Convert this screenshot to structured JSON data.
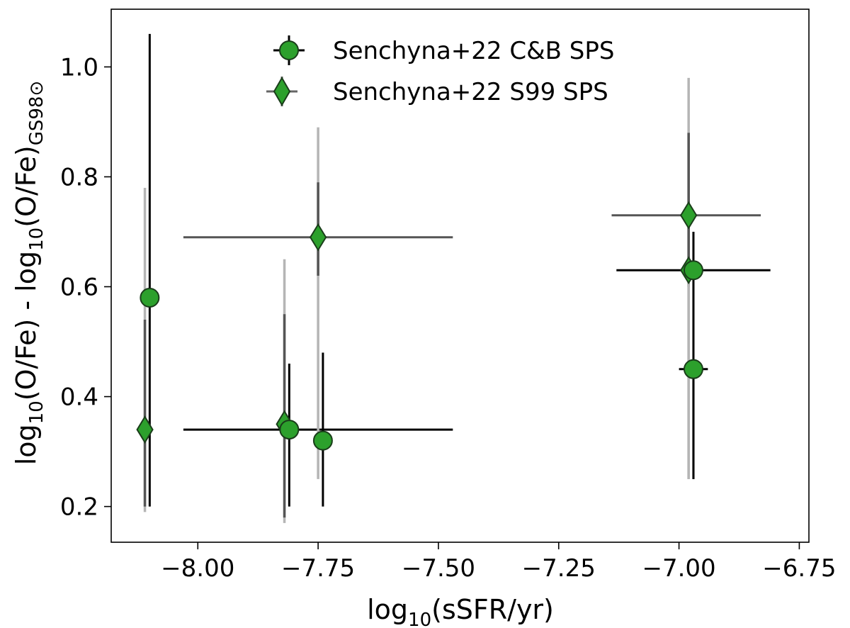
{
  "chart_data": {
    "type": "scatter",
    "xlabel": {
      "pre": "log",
      "sub": "10",
      "post": "(sSFR/yr)"
    },
    "ylabel": {
      "a_pre": "log",
      "a_sub": "10",
      "a_post": "(O/Fe) - ",
      "b_pre": "log",
      "b_sub": "10",
      "b_post": "(O/Fe)",
      "b_subscript": "GS98⊙"
    },
    "xlim": [
      -8.18,
      -6.73
    ],
    "ylim": [
      0.135,
      1.105
    ],
    "xticks": [
      -8.0,
      -7.75,
      -7.5,
      -7.25,
      -7.0,
      -6.75
    ],
    "xtick_labels": [
      "−8.00",
      "−7.75",
      "−7.50",
      "−7.25",
      "−7.00",
      "−6.75"
    ],
    "yticks": [
      0.2,
      0.4,
      0.6,
      0.8,
      1.0
    ],
    "ytick_labels": [
      "0.2",
      "0.4",
      "0.6",
      "0.8",
      "1.0"
    ],
    "grid": false,
    "legend_position": "top-center",
    "marker_color": "#2ca02c",
    "series": [
      {
        "name": "Senchyna+22 C&B SPS",
        "marker": "circle",
        "points": [
          {
            "x": -8.1,
            "y": 0.58,
            "ylo": 0.2,
            "yhi": 1.06
          },
          {
            "x": -7.81,
            "y": 0.34,
            "ylo": 0.2,
            "yhi": 0.46,
            "xlo": -8.03,
            "xhi": -7.47,
            "xerr_gray": false
          },
          {
            "x": -7.74,
            "y": 0.32,
            "ylo": 0.2,
            "yhi": 0.48
          },
          {
            "x": -6.97,
            "y": 0.63,
            "ylo": 0.25,
            "yhi": 0.7,
            "xlo": -7.13,
            "xhi": -6.81
          },
          {
            "x": -6.97,
            "y": 0.45,
            "ylo": 0.25,
            "yhi": 0.45,
            "xlo": -7.0,
            "xhi": -6.94
          }
        ]
      },
      {
        "name": "Senchyna+22 S99 SPS",
        "marker": "diamond",
        "points": [
          {
            "x": -8.11,
            "y": 0.34,
            "ylo": 0.19,
            "yhi": 0.78,
            "ylo_dark": 0.2,
            "yhi_dark": 0.54
          },
          {
            "x": -7.82,
            "y": 0.35,
            "ylo": 0.17,
            "yhi": 0.65,
            "ylo_dark": 0.18,
            "yhi_dark": 0.55
          },
          {
            "x": -7.75,
            "y": 0.69,
            "ylo": 0.25,
            "yhi": 0.89,
            "ylo_dark": 0.62,
            "yhi_dark": 0.79,
            "xlo": -8.03,
            "xhi": -7.47
          },
          {
            "x": -6.98,
            "y": 0.73,
            "ylo": 0.25,
            "yhi": 0.98,
            "ylo_dark": 0.6,
            "yhi_dark": 0.88,
            "xlo": -7.14,
            "xhi": -6.83
          },
          {
            "x": -6.98,
            "y": 0.63,
            "ylo": 0.25,
            "yhi": 0.63
          }
        ]
      }
    ]
  }
}
